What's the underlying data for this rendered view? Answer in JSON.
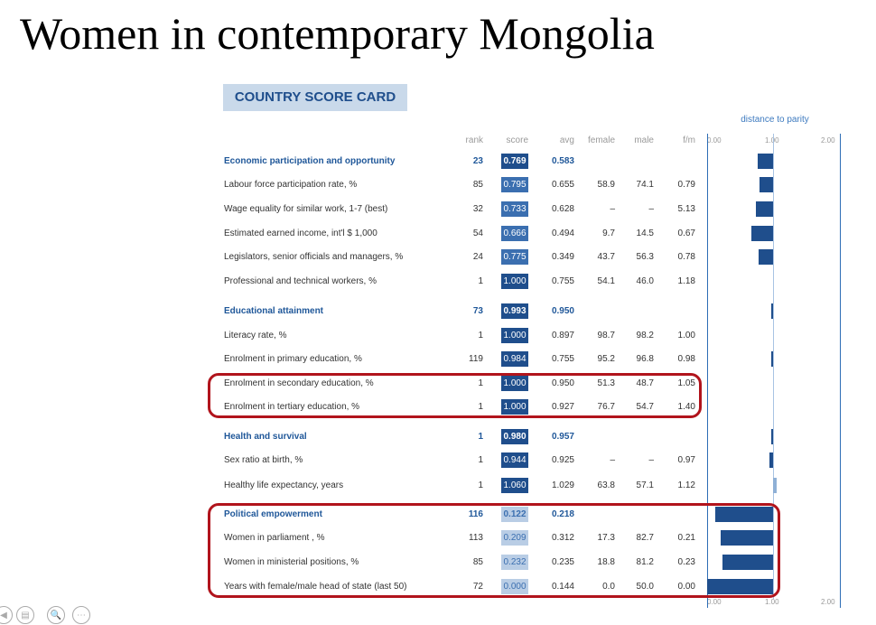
{
  "slide": {
    "title": "Women in contemporary Mongolia"
  },
  "card": {
    "badge": "COUNTRY SCORE CARD",
    "parity_label": "distance to parity"
  },
  "headers": {
    "rank": "rank",
    "score": "score",
    "avg": "avg",
    "female": "female",
    "male": "male",
    "fm": "f/m"
  },
  "axis": {
    "ticks": [
      "0.00",
      "1.00",
      "2.00"
    ]
  },
  "colors": {
    "score_dark": "#1f4e8c",
    "score_mid": "#3b6fb0",
    "score_light": "#b9cde5",
    "score_text_light": "#3b6fb0",
    "bar": "#1f4e8c",
    "bar_light": "#8fb0d6",
    "highlight": "#b1141c"
  },
  "rows": [
    {
      "label": "Economic participation and opportunity",
      "rank": "23",
      "score": "0.769",
      "avg": "0.583",
      "female": "",
      "male": "",
      "fm": "",
      "cat": true
    },
    {
      "label": "Labour force participation rate, %",
      "rank": "85",
      "score": "0.795",
      "avg": "0.655",
      "female": "58.9",
      "male": "74.1",
      "fm": "0.79"
    },
    {
      "label": "Wage equality for similar work, 1-7 (best)",
      "rank": "32",
      "score": "0.733",
      "avg": "0.628",
      "female": "–",
      "male": "–",
      "fm": "5.13"
    },
    {
      "label": "Estimated earned income, int'l $ 1,000",
      "rank": "54",
      "score": "0.666",
      "avg": "0.494",
      "female": "9.7",
      "male": "14.5",
      "fm": "0.67"
    },
    {
      "label": "Legislators, senior officials and managers, %",
      "rank": "24",
      "score": "0.775",
      "avg": "0.349",
      "female": "43.7",
      "male": "56.3",
      "fm": "0.78"
    },
    {
      "label": "Professional and technical workers, %",
      "rank": "1",
      "score": "1.000",
      "avg": "0.755",
      "female": "54.1",
      "male": "46.0",
      "fm": "1.18"
    },
    {
      "label": "Educational attainment",
      "rank": "73",
      "score": "0.993",
      "avg": "0.950",
      "female": "",
      "male": "",
      "fm": "",
      "cat": true
    },
    {
      "label": "Literacy rate, %",
      "rank": "1",
      "score": "1.000",
      "avg": "0.897",
      "female": "98.7",
      "male": "98.2",
      "fm": "1.00"
    },
    {
      "label": "Enrolment in primary education, %",
      "rank": "119",
      "score": "0.984",
      "avg": "0.755",
      "female": "95.2",
      "male": "96.8",
      "fm": "0.98"
    },
    {
      "label": "Enrolment in secondary education, %",
      "rank": "1",
      "score": "1.000",
      "avg": "0.950",
      "female": "51.3",
      "male": "48.7",
      "fm": "1.05"
    },
    {
      "label": "Enrolment in tertiary education, %",
      "rank": "1",
      "score": "1.000",
      "avg": "0.927",
      "female": "76.7",
      "male": "54.7",
      "fm": "1.40"
    },
    {
      "label": "Health and survival",
      "rank": "1",
      "score": "0.980",
      "avg": "0.957",
      "female": "",
      "male": "",
      "fm": "",
      "cat": true
    },
    {
      "label": "Sex ratio at birth, %",
      "rank": "1",
      "score": "0.944",
      "avg": "0.925",
      "female": "–",
      "male": "–",
      "fm": "0.97"
    },
    {
      "label": "Healthy life expectancy, years",
      "rank": "1",
      "score": "1.060",
      "avg": "1.029",
      "female": "63.8",
      "male": "57.1",
      "fm": "1.12"
    },
    {
      "label": "Political empowerment",
      "rank": "116",
      "score": "0.122",
      "avg": "0.218",
      "female": "",
      "male": "",
      "fm": "",
      "cat": true
    },
    {
      "label": "Women in parliament , %",
      "rank": "113",
      "score": "0.209",
      "avg": "0.312",
      "female": "17.3",
      "male": "82.7",
      "fm": "0.21"
    },
    {
      "label": "Women in ministerial positions, %",
      "rank": "85",
      "score": "0.232",
      "avg": "0.235",
      "female": "18.8",
      "male": "81.2",
      "fm": "0.23"
    },
    {
      "label": "Years with female/male head of state (last 50)",
      "rank": "72",
      "score": "0.000",
      "avg": "0.144",
      "female": "0.0",
      "male": "50.0",
      "fm": "0.00"
    }
  ],
  "controls": [
    "◀",
    "▤",
    "🔍",
    "⋯"
  ]
}
